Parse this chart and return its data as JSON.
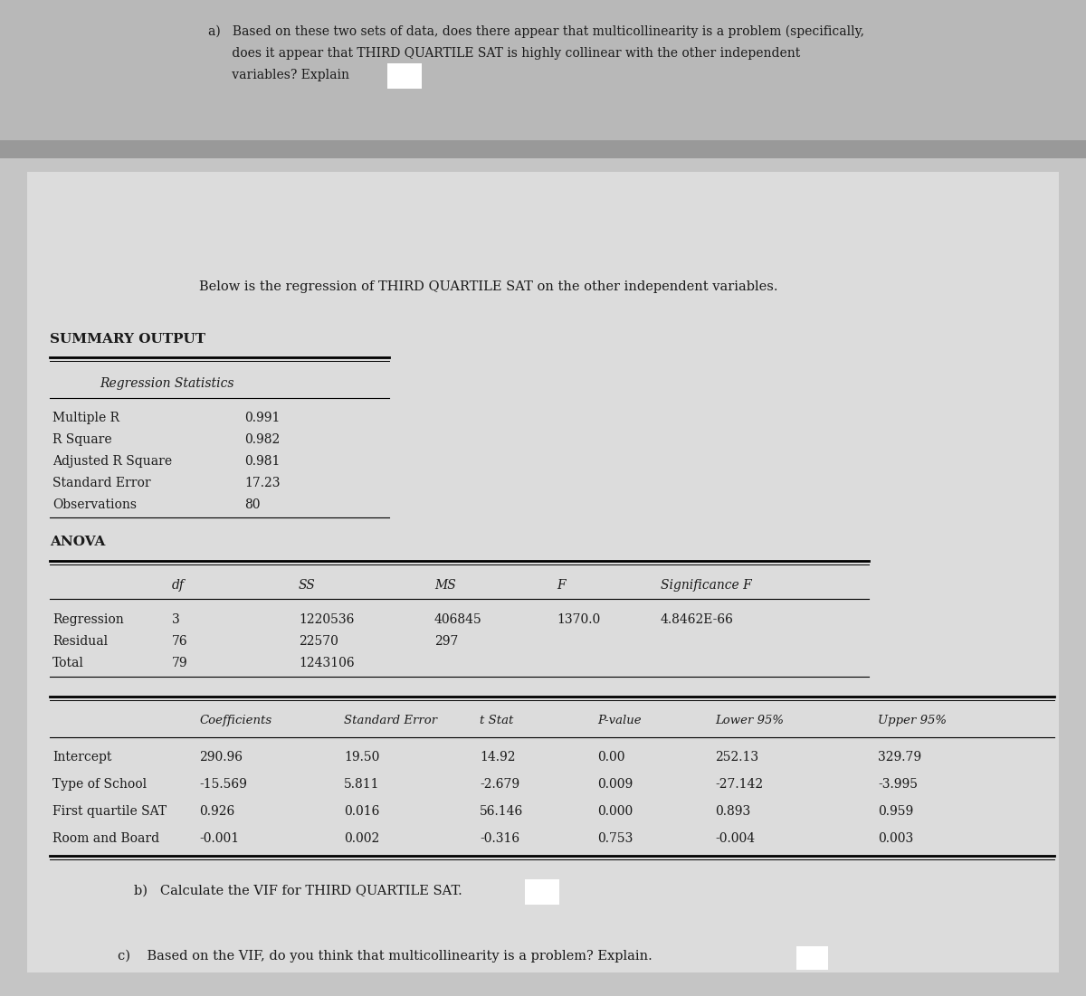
{
  "part_a_line1": "a)   Based on these two sets of data, does there appear that multicollinearity is a problem (specifically,",
  "part_a_line2": "      does it appear that THIRD QUARTILE SAT is highly collinear with the other independent",
  "part_a_line3": "      variables? Explain",
  "below_text": "Below is the regression of THIRD QUARTILE SAT on the other independent variables.",
  "summary_output": "SUMMARY OUTPUT",
  "reg_stats_header": "Regression Statistics",
  "reg_stats_labels": [
    "Multiple R",
    "R Square",
    "Adjusted R Square",
    "Standard Error",
    "Observations"
  ],
  "reg_stats_values": [
    "0.991",
    "0.982",
    "0.981",
    "17.23",
    "80"
  ],
  "anova_header": "ANOVA",
  "anova_col_headers": [
    "df",
    "SS",
    "MS",
    "F",
    "Significance F"
  ],
  "anova_rows": [
    [
      "Regression",
      "3",
      "1220536",
      "406845",
      "1370.0",
      "4.8462E-66"
    ],
    [
      "Residual",
      "76",
      "22570",
      "297",
      "",
      ""
    ],
    [
      "Total",
      "79",
      "1243106",
      "",
      "",
      ""
    ]
  ],
  "coef_col_headers": [
    "Coefficients",
    "Standard Error",
    "t Stat",
    "P-value",
    "Lower 95%",
    "Upper 95%"
  ],
  "coef_rows": [
    [
      "Intercept",
      "290.96",
      "19.50",
      "14.92",
      "0.00",
      "252.13",
      "329.79"
    ],
    [
      "Type of School",
      "-15.569",
      "5.811",
      "-2.679",
      "0.009",
      "-27.142",
      "-3.995"
    ],
    [
      "First quartile SAT",
      "0.926",
      "0.016",
      "56.146",
      "0.000",
      "0.893",
      "0.959"
    ],
    [
      "Room and Board",
      "-0.001",
      "0.002",
      "-0.316",
      "0.753",
      "-0.004",
      "0.003"
    ]
  ],
  "part_b_text": "b)   Calculate the VIF for THIRD QUARTILE SAT.",
  "part_c_text": "c)    Based on the VIF, do you think that multicollinearity is a problem? Explain.",
  "color_top_bg": "#b5b5b5",
  "color_separator": "#a0a0a0",
  "color_main_bg": "#c8c8c8",
  "color_inner_bg": "#d8d8d8",
  "color_text": "#1a1a1a"
}
